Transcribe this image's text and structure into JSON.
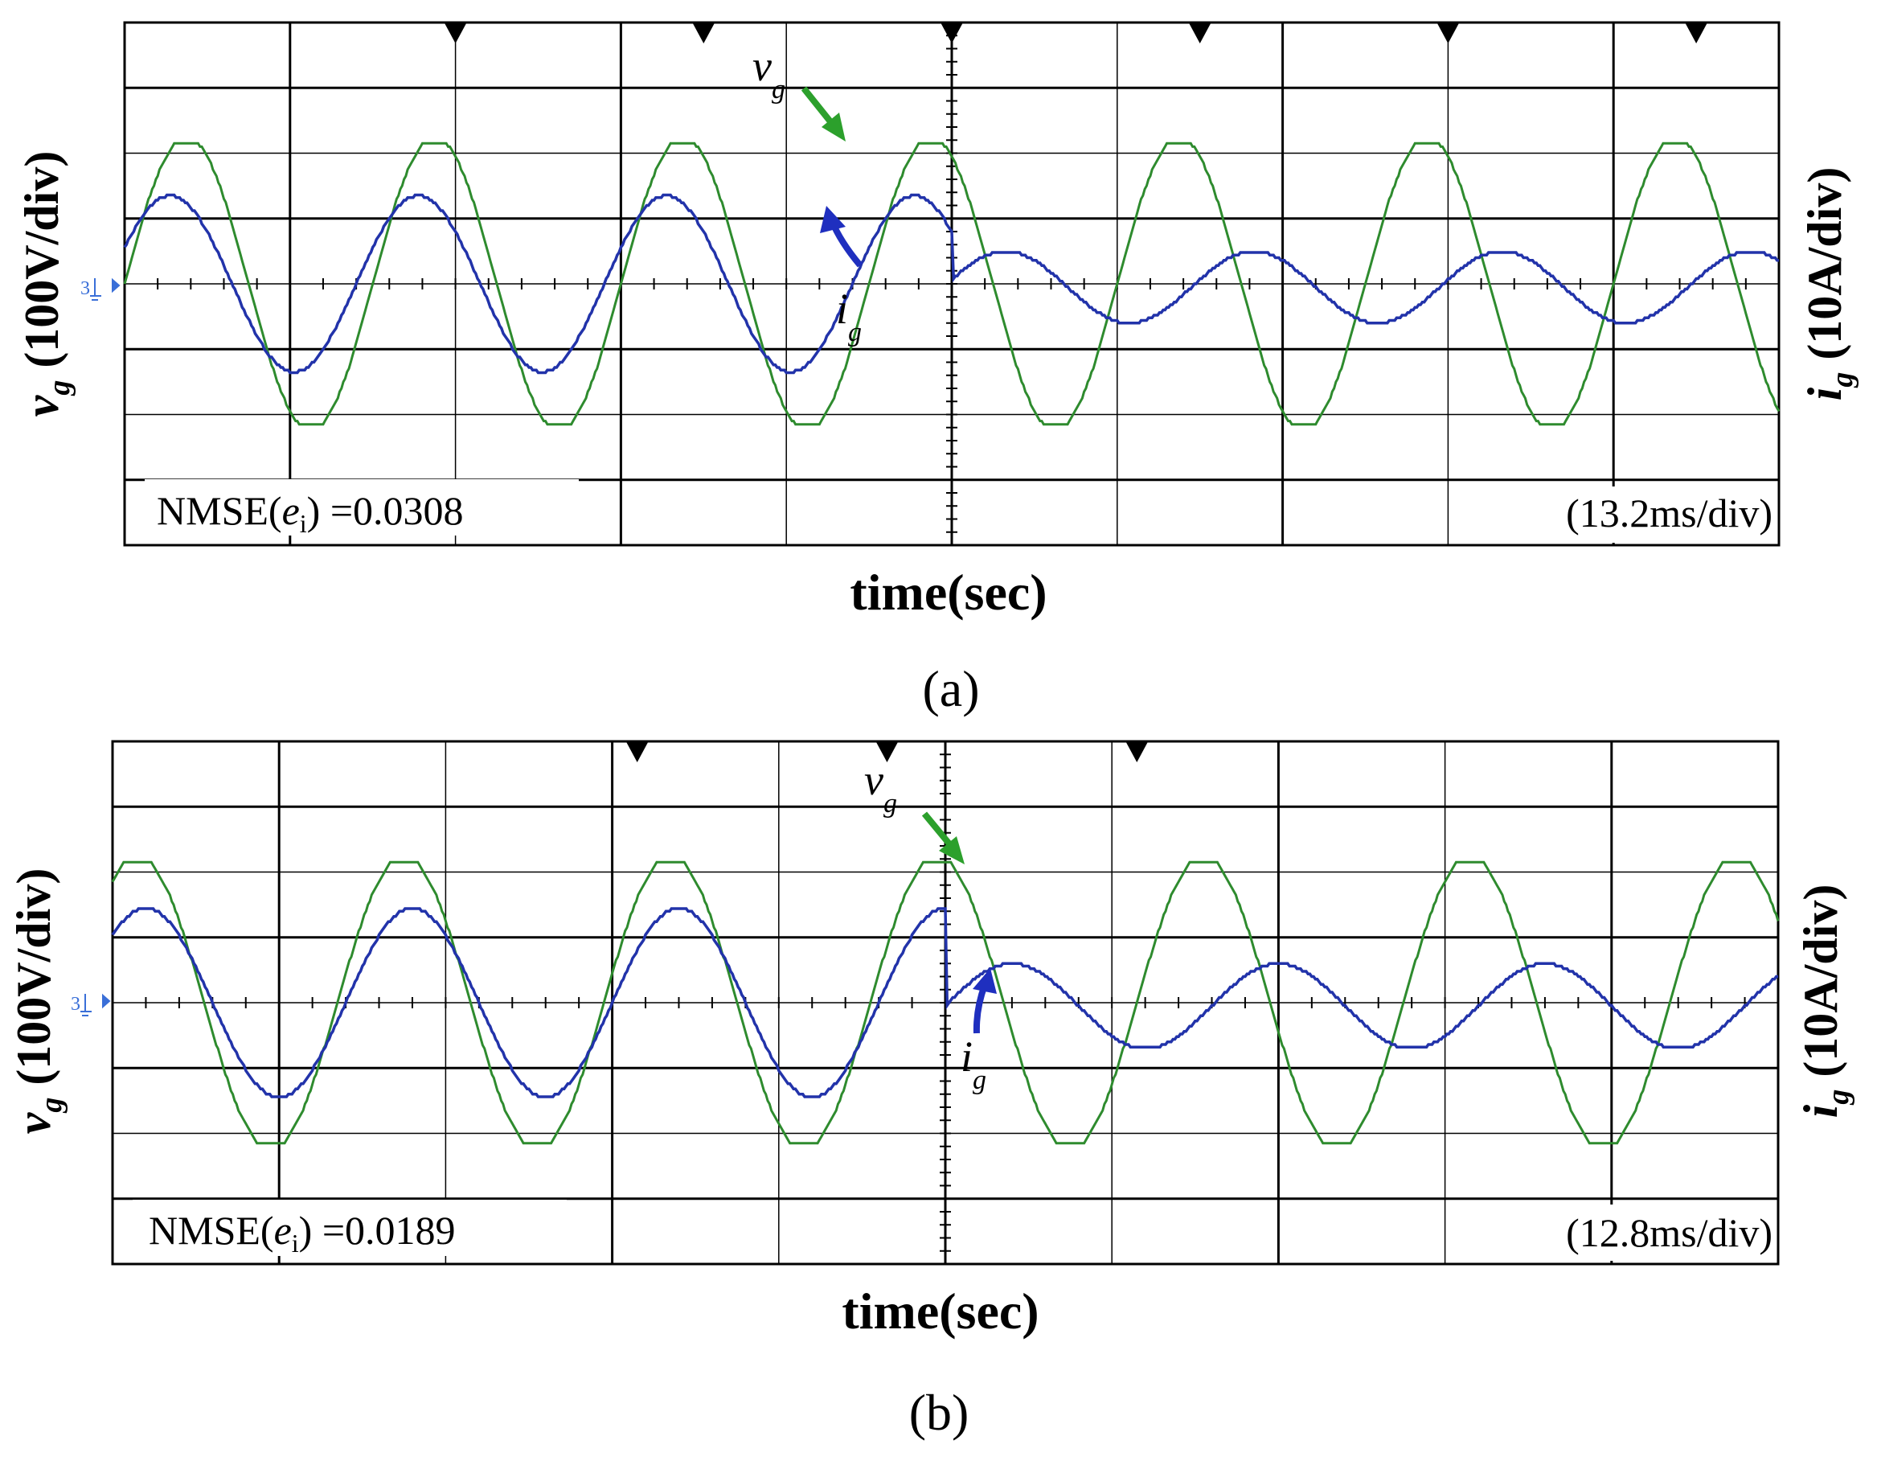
{
  "chart_data": [
    {
      "id": "a",
      "type": "line",
      "caption": "(a)",
      "xlabel": "time(sec)",
      "ylabel_left": {
        "main": "v",
        "sub": "g",
        "rest": " (100V/div)"
      },
      "ylabel_right": {
        "main": "i",
        "sub": "g",
        "rest": " (10A/div)"
      },
      "grid": true,
      "grid_divisions": {
        "x": 10,
        "y": 8
      },
      "timebase": "(13.2ms/div)",
      "nmse": {
        "prefix": "NMSE(",
        "var": "e",
        "sub": "i",
        "suffix": ") =0.0308"
      },
      "ground_marker": "3",
      "annotations": [
        {
          "main": "v",
          "sub": "g",
          "series": "v_g"
        },
        {
          "main": "i",
          "sub": "g",
          "series": "i_g"
        }
      ],
      "step_time_div": 5.0,
      "series": [
        {
          "key": "v_g",
          "color": "#2e8b2e",
          "unit": "100V/div",
          "amplitude_div": 2.25,
          "clip_div": 2.15,
          "period_div": 1.5,
          "phase_div": 0.0,
          "offset_div": 0.0
        },
        {
          "key": "i_g",
          "color": "#2233aa",
          "unit": "10A/div",
          "segments": [
            {
              "from": 0.0,
              "to": 5.0,
              "amplitude_div": 1.35,
              "period_div": 1.5,
              "phase_div": -0.1,
              "offset_div": 0.0
            },
            {
              "from": 5.0,
              "to": 10.0,
              "amplitude_div": 0.55,
              "period_div": 1.5,
              "phase_div": 0.45,
              "offset_div": -0.05
            }
          ]
        }
      ]
    },
    {
      "id": "b",
      "type": "line",
      "caption": "(b)",
      "xlabel": "time(sec)",
      "ylabel_left": {
        "main": "v",
        "sub": "g",
        "rest": " (100V/div)"
      },
      "ylabel_right": {
        "main": "i",
        "sub": "g",
        "rest": " (10A/div)"
      },
      "grid": true,
      "grid_divisions": {
        "x": 10,
        "y": 8
      },
      "timebase": "(12.8ms/div)",
      "nmse": {
        "prefix": "NMSE(",
        "var": "e",
        "sub": "i",
        "suffix": ") =0.0189"
      },
      "ground_marker": "3",
      "annotations": [
        {
          "main": "v",
          "sub": "g",
          "series": "v_g"
        },
        {
          "main": "i",
          "sub": "g",
          "series": "i_g"
        }
      ],
      "step_time_div": 5.0,
      "series": [
        {
          "key": "v_g",
          "color": "#2e8b2e",
          "unit": "100V/div",
          "amplitude_div": 2.25,
          "clip_div": 2.15,
          "period_div": 1.6,
          "phase_div": -0.25,
          "offset_div": 0.0
        },
        {
          "key": "i_g",
          "color": "#2233aa",
          "unit": "10A/div",
          "segments": [
            {
              "from": 0.0,
              "to": 5.0,
              "amplitude_div": 1.45,
              "period_div": 1.6,
              "phase_div": -0.2,
              "offset_div": 0.0
            },
            {
              "from": 5.0,
              "to": 10.0,
              "amplitude_div": 0.65,
              "period_div": 1.6,
              "phase_div": 0.2,
              "offset_div": -0.05
            }
          ]
        }
      ]
    }
  ]
}
